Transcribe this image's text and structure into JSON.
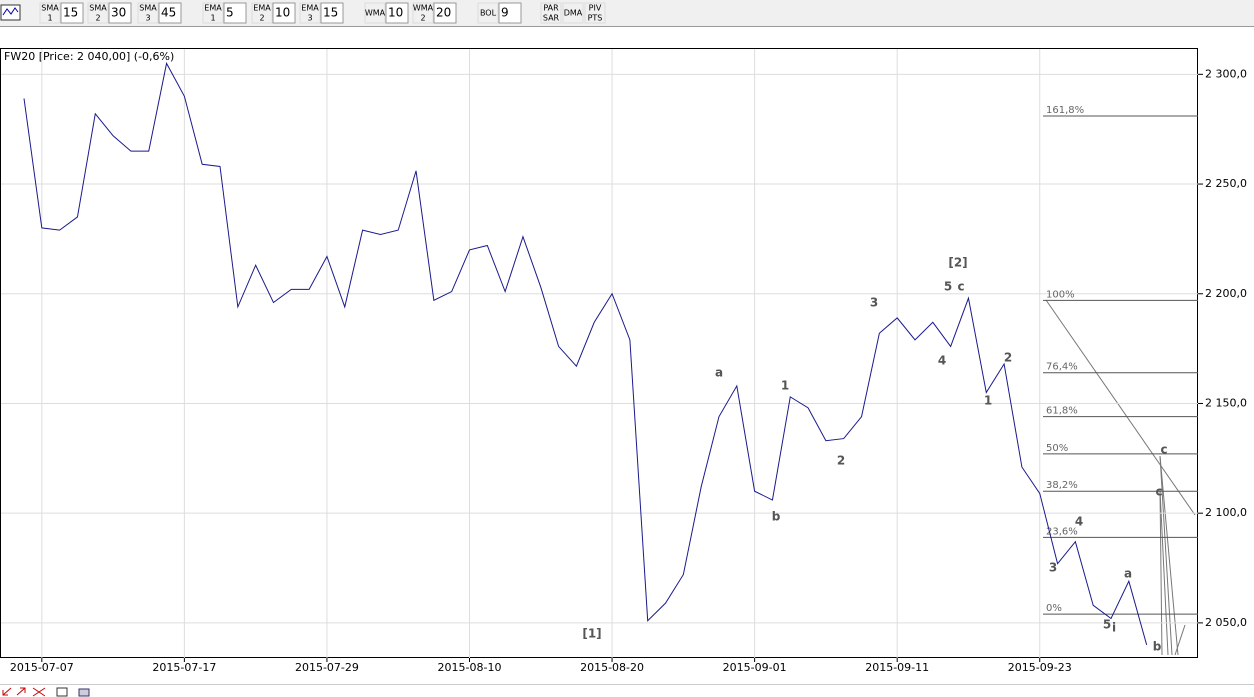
{
  "toolbar": [
    {
      "label": "SMA",
      "sub": "1",
      "value": "15"
    },
    {
      "label": "SMA",
      "sub": "2",
      "value": "30"
    },
    {
      "label": "SMA",
      "sub": "3",
      "value": "45"
    },
    {
      "label": "EMA",
      "sub": "1",
      "value": "5"
    },
    {
      "label": "EMA",
      "sub": "2",
      "value": "10"
    },
    {
      "label": "EMA",
      "sub": "3",
      "value": "15"
    },
    {
      "label": "WMA",
      "value": "10"
    },
    {
      "label": "WMA",
      "sub": "2",
      "value": "20"
    },
    {
      "label": "BOL",
      "value": "9"
    },
    {
      "label": "PAR",
      "sub": "SAR"
    },
    {
      "label": "DMA"
    },
    {
      "label": "PIV",
      "sub": "PTS"
    }
  ],
  "chart_data": {
    "type": "line",
    "title": "FW20 [Price: 2 040,00] (-0,6%)",
    "categories": [
      null,
      "2015-07-07",
      null,
      null,
      null,
      null,
      null,
      null,
      null,
      "2015-07-17",
      null,
      null,
      null,
      null,
      null,
      null,
      null,
      "2015-07-29",
      null,
      null,
      null,
      null,
      null,
      null,
      null,
      "2015-08-10",
      null,
      null,
      null,
      null,
      null,
      null,
      null,
      "2015-08-20",
      null,
      null,
      null,
      null,
      null,
      null,
      null,
      "2015-09-01",
      null,
      null,
      null,
      null,
      null,
      null,
      null,
      "2015-09-11",
      null,
      null,
      null,
      null,
      null,
      null,
      null,
      "2015-09-23",
      null,
      null,
      null,
      null,
      null,
      null
    ],
    "series": [
      {
        "name": "FW20",
        "color": "#1a1a8c",
        "values": [
          2289,
          2230,
          2229,
          2235,
          2282,
          2272,
          2265,
          2265,
          2305,
          2290,
          2259,
          2258,
          2194,
          2213,
          2196,
          2202,
          2202,
          2217,
          2194,
          2229,
          2227,
          2229,
          2256,
          2197,
          2201,
          2220,
          2222,
          2201,
          2226,
          2203,
          2176,
          2167,
          2187,
          2200,
          2179,
          2051,
          2059,
          2072,
          2112,
          2144,
          2158,
          2110,
          2106,
          2153,
          2148,
          2133,
          2134,
          2144,
          2182,
          2189,
          2179,
          2187,
          2176,
          2198,
          2155,
          2168,
          2121,
          2109,
          2077,
          2087,
          2058,
          2052,
          2069,
          2040
        ]
      }
    ],
    "ylim": [
      2034,
      2312
    ],
    "yticks": [
      {
        "value": 2050,
        "label": "2 050,0"
      },
      {
        "value": 2100,
        "label": "2 100,0"
      },
      {
        "value": 2150,
        "label": "2 150,0"
      },
      {
        "value": 2200,
        "label": "2 200,0"
      },
      {
        "value": 2250,
        "label": "2 250,0"
      },
      {
        "value": 2300,
        "label": "2 300,0"
      }
    ],
    "grid": true,
    "fibonacci": [
      {
        "label": "161,8%",
        "value": 2281
      },
      {
        "label": "100%",
        "value": 2197
      },
      {
        "label": "76,4%",
        "value": 2164
      },
      {
        "label": "61,8%",
        "value": 2144
      },
      {
        "label": "50%",
        "value": 2127
      },
      {
        "label": "38,2%",
        "value": 2110
      },
      {
        "label": "23,6%",
        "value": 2089
      },
      {
        "label": "0%",
        "value": 2054
      }
    ],
    "annotations": [
      "[1]",
      "a",
      "b",
      "1",
      "2",
      "3",
      "4",
      "5",
      "c",
      "[2]",
      "1",
      "2",
      "3",
      "4",
      "5",
      "i",
      "a",
      "b",
      "c",
      "c"
    ]
  }
}
